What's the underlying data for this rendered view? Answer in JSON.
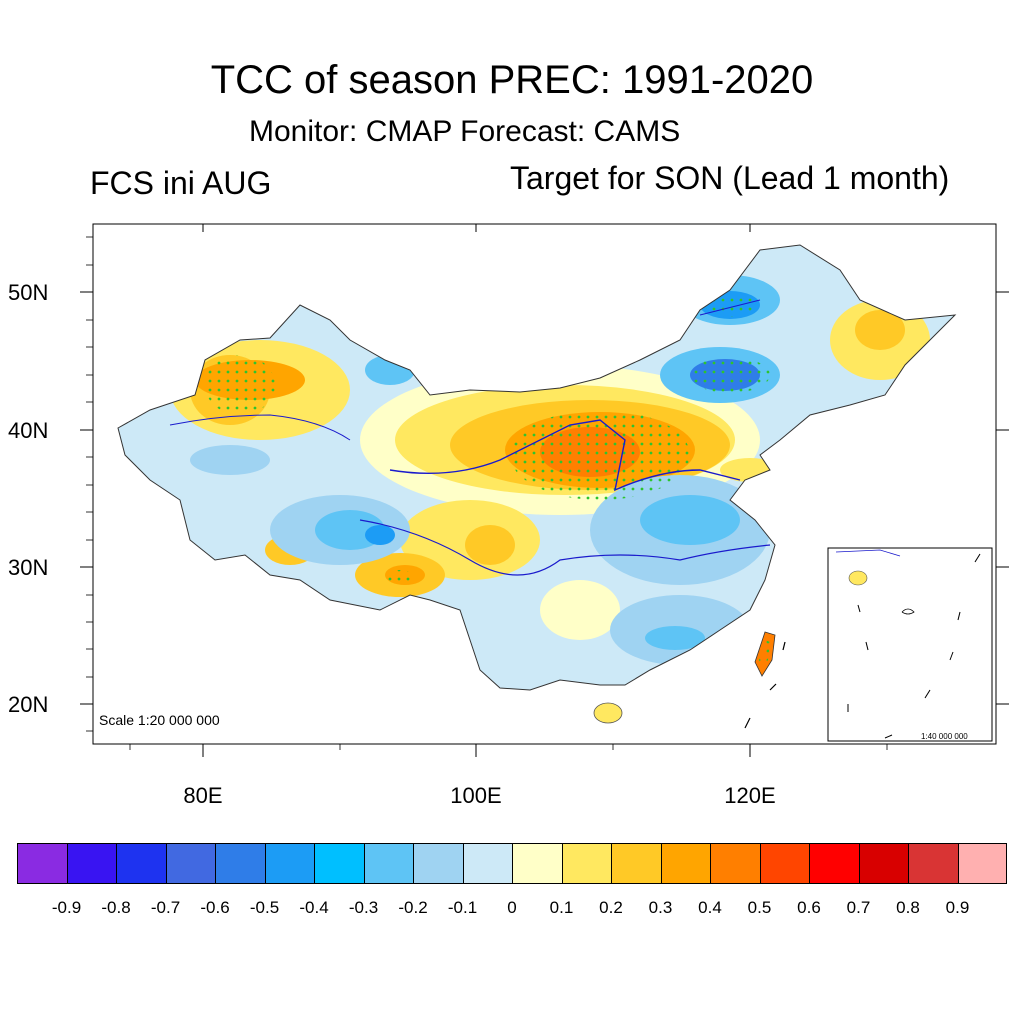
{
  "title": "TCC of season PREC: 1991-2020",
  "subtitle": "Monitor: CMAP   Forecast: CAMS",
  "left_label": "FCS ini AUG",
  "right_label": "Target for SON (Lead 1 month)",
  "scale_label": "Scale 1:20 000 000",
  "inset_scale_label": "1:40 000 000",
  "lat_labels": [
    "50N",
    "40N",
    "30N",
    "20N"
  ],
  "lon_labels": [
    "80E",
    "100E",
    "120E"
  ],
  "colorbar": {
    "colors": [
      "#8a2be2",
      "#3914f2",
      "#1e33f0",
      "#4169e1",
      "#2f7de8",
      "#1c9cf5",
      "#00bfff",
      "#5ec4f5",
      "#9fd3f2",
      "#cde9f7",
      "#ffffc8",
      "#ffe860",
      "#ffc926",
      "#ffa500",
      "#ff7f00",
      "#ff4500",
      "#ff0000",
      "#d80000",
      "#d93434",
      "#ffb0b0"
    ],
    "labels": [
      "-0.9",
      "-0.8",
      "-0.7",
      "-0.6",
      "-0.5",
      "-0.4",
      "-0.3",
      "-0.2",
      "-0.1",
      "0",
      "0.1",
      "0.2",
      "0.3",
      "0.4",
      "0.5",
      "0.6",
      "0.7",
      "0.8",
      "0.9"
    ]
  }
}
